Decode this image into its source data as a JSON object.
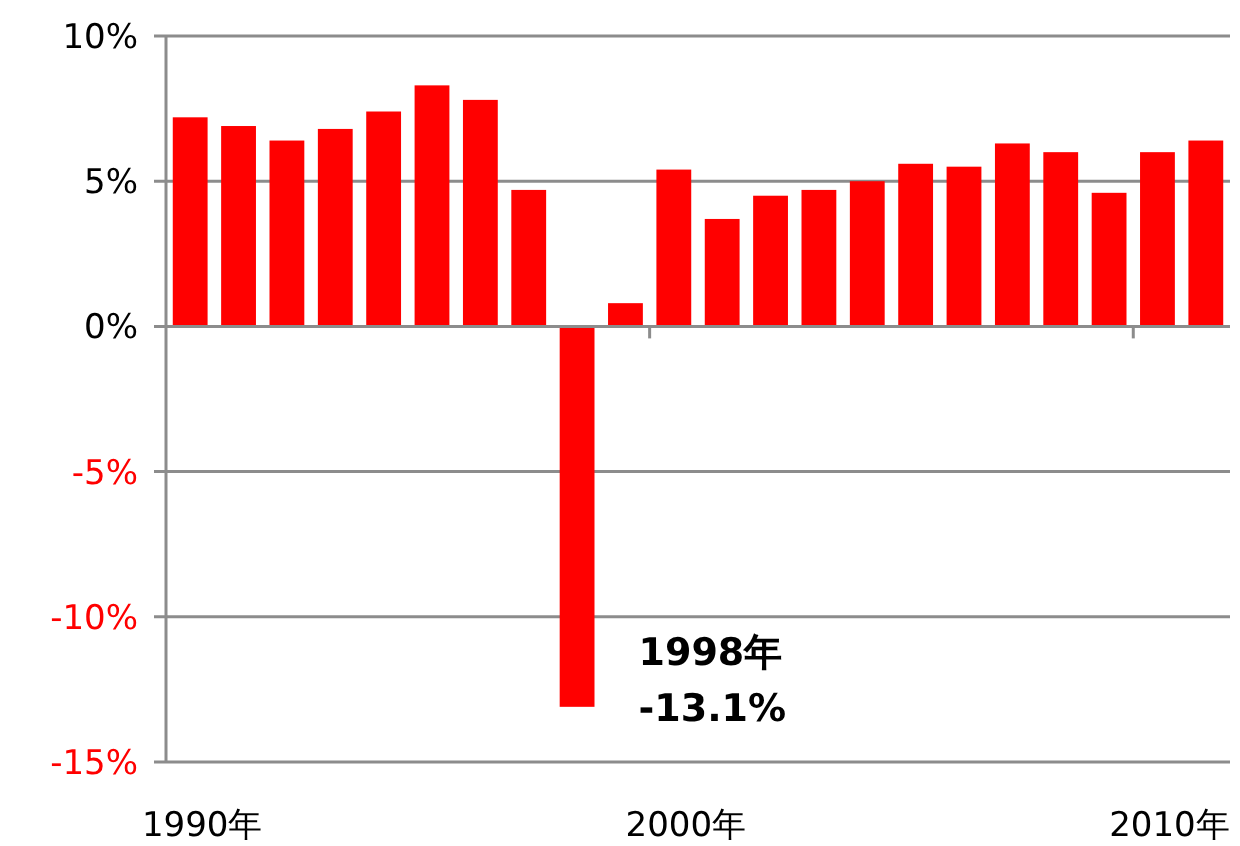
{
  "chart_data": {
    "type": "bar",
    "categories": [
      "1990年",
      null,
      null,
      null,
      null,
      null,
      null,
      null,
      null,
      null,
      "2000年",
      null,
      null,
      null,
      null,
      null,
      null,
      null,
      null,
      null,
      "2010年",
      null
    ],
    "values": [
      7.2,
      6.9,
      6.4,
      6.8,
      7.4,
      8.3,
      7.8,
      4.7,
      -13.1,
      0.8,
      5.4,
      3.7,
      4.5,
      4.7,
      5.0,
      5.6,
      5.5,
      6.3,
      6.0,
      4.6,
      6.0,
      6.4
    ],
    "color": "#ff0000",
    "ylim": [
      -15,
      10
    ],
    "yticks": [
      {
        "value": -15,
        "label": "-15%"
      },
      {
        "value": -10,
        "label": "-10%"
      },
      {
        "value": -5,
        "label": "-5%"
      },
      {
        "value": 0,
        "label": "0%"
      },
      {
        "value": 5,
        "label": "5%"
      },
      {
        "value": 10,
        "label": "10%"
      }
    ],
    "grid": "y",
    "annotations": [
      "1998年",
      "-13.1%"
    ]
  }
}
